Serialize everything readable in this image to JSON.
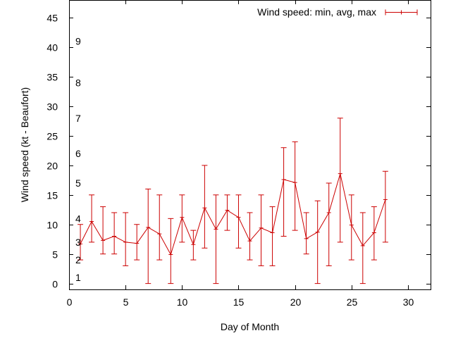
{
  "chart_data": {
    "type": "line",
    "title": "",
    "xlabel": "Day of Month",
    "ylabel": "Wind speed (kt - Beaufort)",
    "xlim": [
      0,
      32
    ],
    "ylim": [
      -1,
      48
    ],
    "xticks": [
      0,
      5,
      10,
      15,
      20,
      25,
      30
    ],
    "yticks": [
      0,
      5,
      10,
      15,
      20,
      25,
      30,
      35,
      40,
      45
    ],
    "grid": false,
    "legend_position": "top-right",
    "beaufort_labels": [
      {
        "label": "1",
        "y": 1
      },
      {
        "label": "2",
        "y": 4
      },
      {
        "label": "3",
        "y": 7
      },
      {
        "label": "4",
        "y": 11
      },
      {
        "label": "5",
        "y": 17
      },
      {
        "label": "6",
        "y": 22
      },
      {
        "label": "7",
        "y": 28
      },
      {
        "label": "8",
        "y": 34
      },
      {
        "label": "9",
        "y": 41
      }
    ],
    "series": [
      {
        "name": "Wind speed: min, avg, max",
        "color": "#cc0000",
        "x": [
          1,
          2,
          3,
          4,
          5,
          6,
          7,
          8,
          9,
          10,
          11,
          12,
          13,
          14,
          15,
          16,
          17,
          18,
          19,
          20,
          21,
          22,
          23,
          24,
          25,
          26,
          27,
          28
        ],
        "avg": [
          6.7,
          10.5,
          7.3,
          8,
          7,
          6.8,
          9.5,
          8.4,
          4.9,
          11.2,
          6.6,
          12.8,
          9.2,
          12.4,
          11.2,
          7.2,
          9.4,
          8.6,
          17.6,
          17.1,
          7.6,
          8.7,
          12.0,
          18.6,
          9.9,
          6.4,
          8.6,
          14.2
        ],
        "min": [
          4,
          7,
          5,
          5,
          3,
          4,
          0,
          4,
          0,
          7,
          4,
          6,
          0,
          9,
          6,
          4,
          3,
          3,
          8,
          9,
          5,
          0,
          3,
          7,
          4,
          0,
          4,
          7
        ],
        "max": [
          10,
          15,
          13,
          12,
          12,
          10,
          16,
          15,
          11,
          15,
          9,
          20,
          15,
          15,
          15,
          12,
          15,
          13,
          23,
          24,
          12,
          14,
          17,
          28,
          15,
          12,
          13,
          19
        ]
      }
    ]
  }
}
